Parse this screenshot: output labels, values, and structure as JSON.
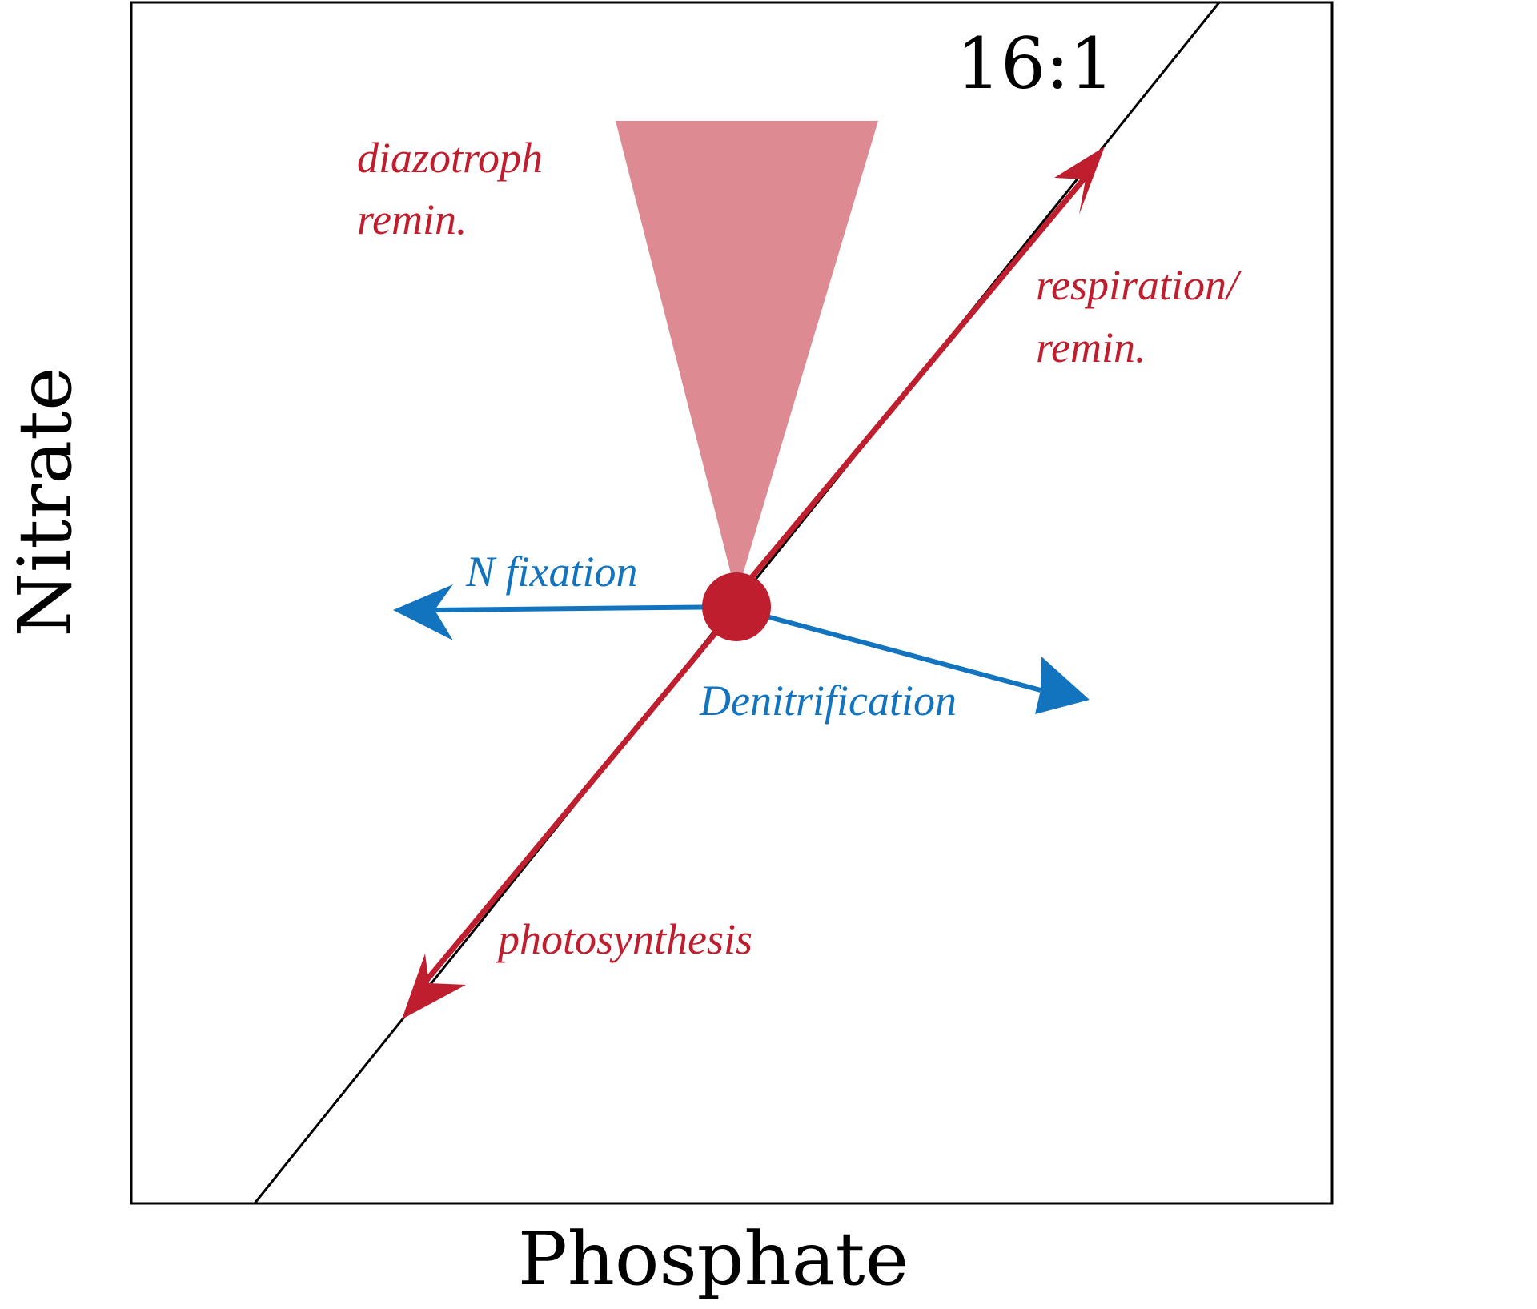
{
  "axes": {
    "x_label": "Phosphate",
    "y_label": "Nitrate"
  },
  "ratio_label": "16:1",
  "processes": {
    "diazotroph": [
      "diazotroph",
      "remin."
    ],
    "respiration": [
      "respiration/",
      "remin."
    ],
    "n_fixation": "N fixation",
    "denitrification": "Denitrification",
    "photosynthesis": "photosynthesis"
  },
  "colors": {
    "red": "#be1e2d",
    "blue": "#1273bf",
    "wedge": "#de8a92",
    "frame": "#000000"
  }
}
